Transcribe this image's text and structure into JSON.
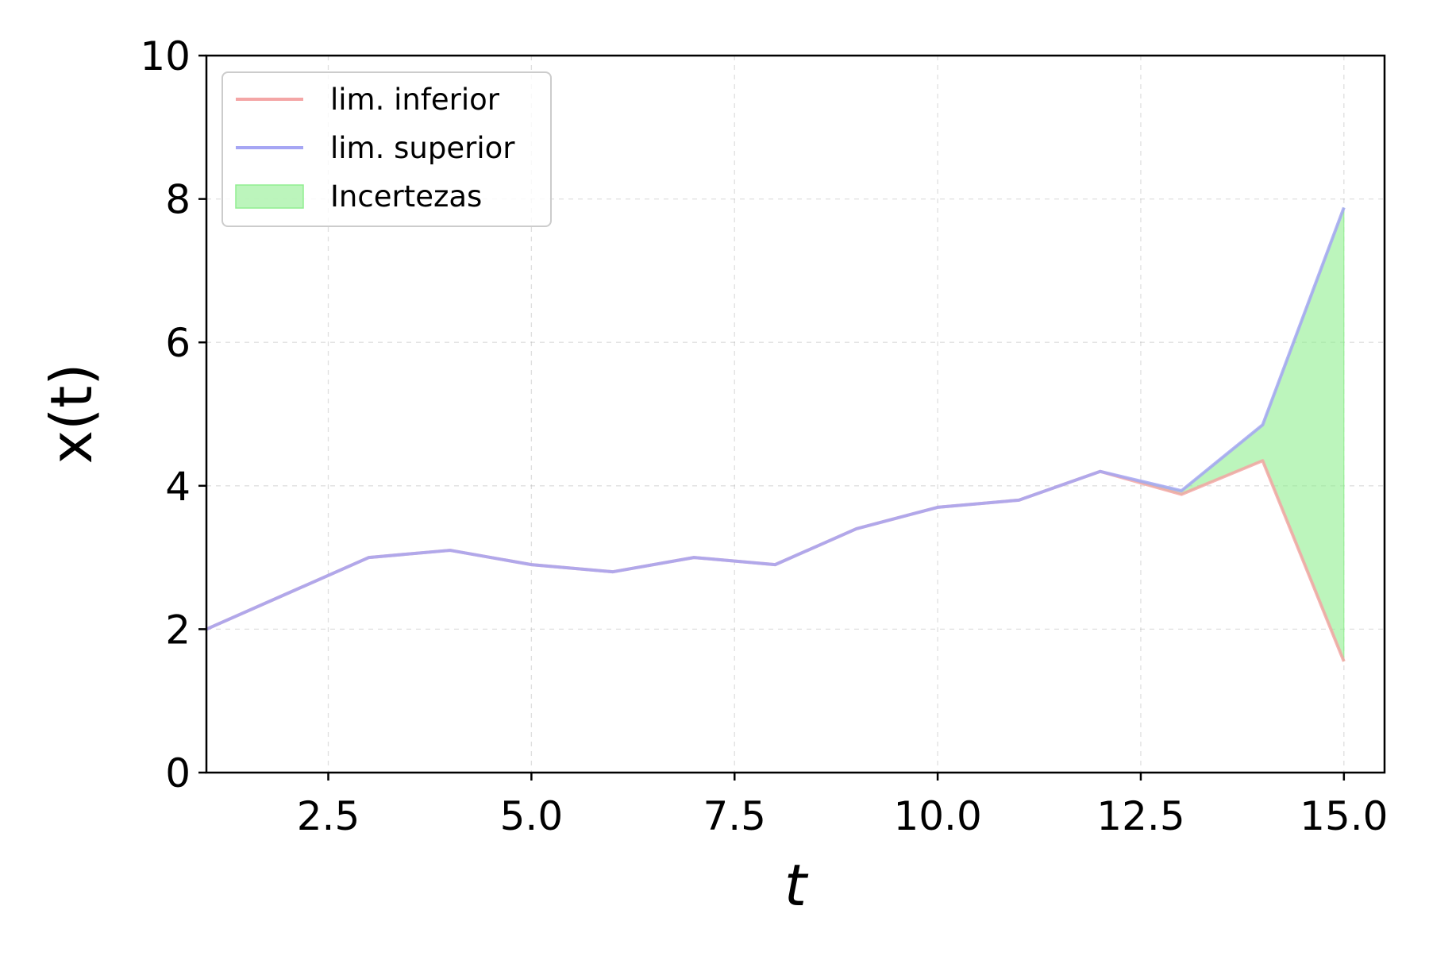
{
  "chart_data": {
    "type": "line",
    "x": [
      1,
      2,
      3,
      4,
      5,
      6,
      7,
      8,
      9,
      10,
      11,
      12,
      13,
      14,
      15
    ],
    "series": [
      {
        "name": "lim. inferior",
        "color": "#f4a6a6",
        "values": [
          2.0,
          2.5,
          3.0,
          3.1,
          2.9,
          2.8,
          3.0,
          2.9,
          3.4,
          3.7,
          3.8,
          4.2,
          3.88,
          4.35,
          1.55
        ]
      },
      {
        "name": "lim. superior",
        "color": "#a6a6f4",
        "values": [
          2.0,
          2.5,
          3.0,
          3.1,
          2.9,
          2.8,
          3.0,
          2.9,
          3.4,
          3.7,
          3.8,
          4.2,
          3.93,
          4.85,
          7.88
        ]
      }
    ],
    "band": {
      "name": "Incertezas",
      "color": "#90ee90",
      "lower_series": "lim. inferior",
      "upper_series": "lim. superior"
    },
    "xlabel": "t",
    "ylabel": "x(t)",
    "xlim": [
      1,
      15.5
    ],
    "ylim": [
      0,
      10
    ],
    "x_ticks": [
      2.5,
      5.0,
      7.5,
      10.0,
      12.5,
      15.0
    ],
    "x_tick_labels": [
      "2.5",
      "5.0",
      "7.5",
      "10.0",
      "12.5",
      "15.0"
    ],
    "y_ticks": [
      0,
      2,
      4,
      6,
      8,
      10
    ],
    "y_tick_labels": [
      "0",
      "2",
      "4",
      "6",
      "8",
      "10"
    ],
    "grid": true,
    "legend_position": "top-left"
  }
}
